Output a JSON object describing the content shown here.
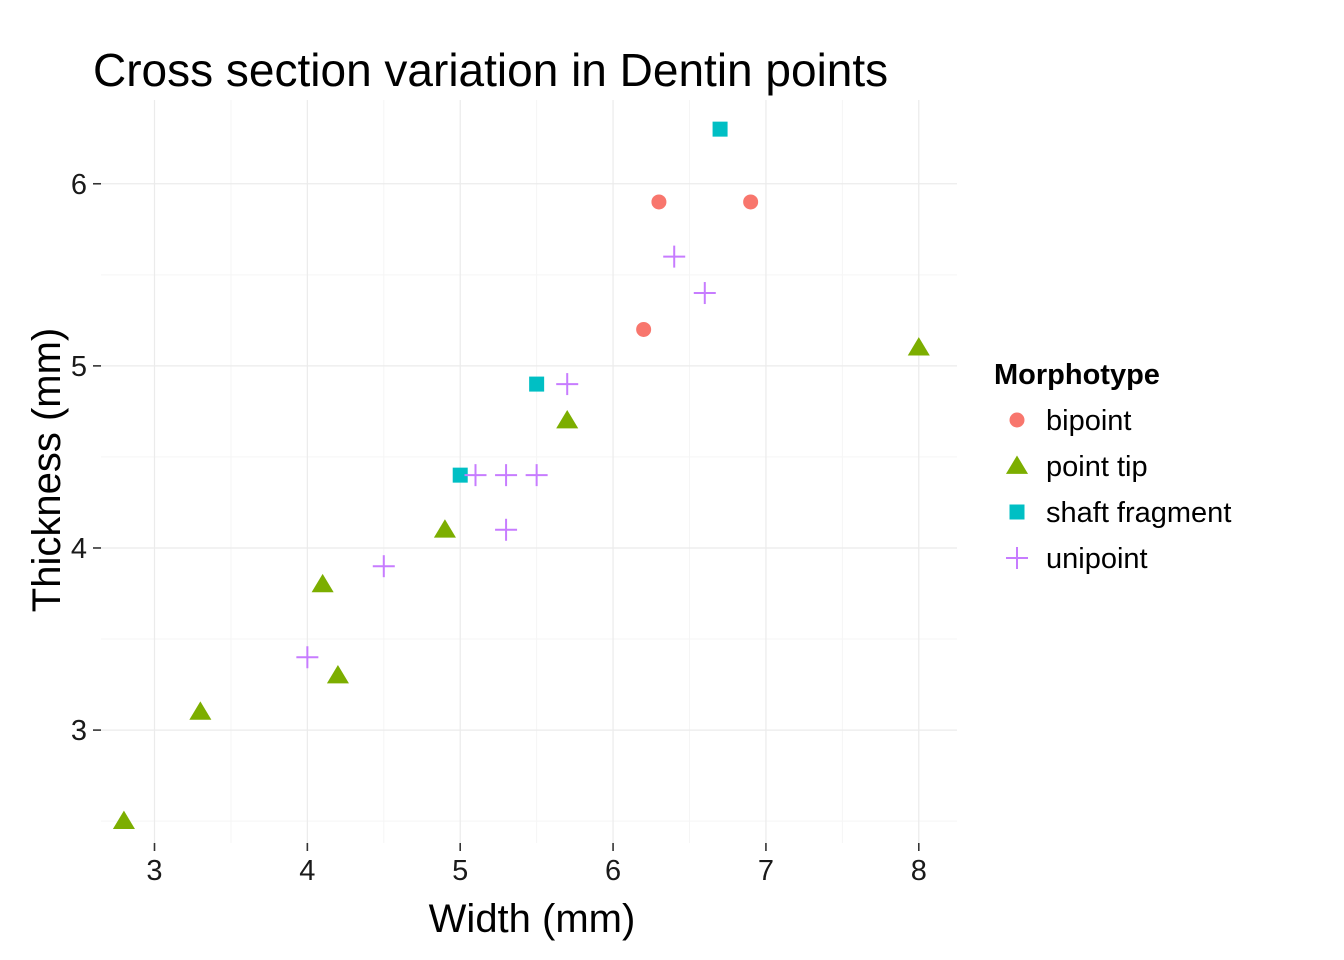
{
  "chart_data": {
    "type": "scatter",
    "title": "Cross section variation in Dentin points",
    "xlabel": "Width (mm)",
    "ylabel": "Thickness (mm)",
    "xlim": [
      2.65,
      8.25
    ],
    "ylim": [
      2.38,
      6.46
    ],
    "xticks": [
      3,
      4,
      5,
      6,
      7,
      8
    ],
    "yticks": [
      3,
      4,
      5,
      6
    ],
    "grid": true,
    "legend": {
      "title": "Morphotype",
      "position": "right"
    },
    "series": [
      {
        "name": "bipoint",
        "shape": "circle",
        "color": "#F8766D",
        "points": [
          [
            6.3,
            5.9
          ],
          [
            6.9,
            5.9
          ],
          [
            6.2,
            5.2
          ]
        ]
      },
      {
        "name": "point tip",
        "shape": "triangle",
        "color": "#7CAE00",
        "points": [
          [
            8.0,
            5.1
          ],
          [
            5.7,
            4.7
          ],
          [
            4.9,
            4.1
          ],
          [
            4.1,
            3.8
          ],
          [
            4.2,
            3.3
          ],
          [
            3.3,
            3.1
          ],
          [
            2.8,
            2.5
          ]
        ]
      },
      {
        "name": "shaft fragment",
        "shape": "square",
        "color": "#00BFC4",
        "points": [
          [
            6.7,
            6.3
          ],
          [
            5.5,
            4.9
          ],
          [
            5.0,
            4.4
          ]
        ]
      },
      {
        "name": "unipoint",
        "shape": "plus",
        "color": "#C77CFF",
        "points": [
          [
            6.4,
            5.6
          ],
          [
            6.6,
            5.4
          ],
          [
            5.7,
            4.9
          ],
          [
            5.1,
            4.4
          ],
          [
            5.3,
            4.4
          ],
          [
            5.5,
            4.4
          ],
          [
            5.3,
            4.1
          ],
          [
            4.5,
            3.9
          ],
          [
            4.0,
            3.4
          ]
        ]
      }
    ]
  }
}
